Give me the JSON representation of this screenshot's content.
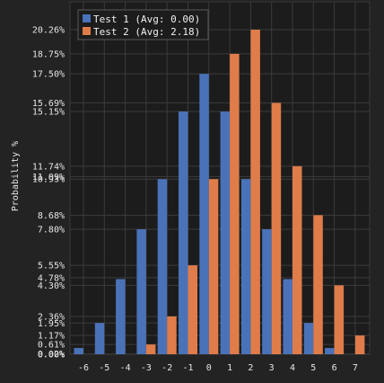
{
  "chart_data": {
    "type": "bar",
    "ylabel": "Probability %",
    "xlabel": "",
    "categories": [
      "-6",
      "-5",
      "-4",
      "-3",
      "-2",
      "-1",
      "0",
      "1",
      "2",
      "3",
      "4",
      "5",
      "6",
      "7"
    ],
    "ytick_labels": [
      "0.00%",
      "0.02%",
      "0.61%",
      "1.17%",
      "1.95%",
      "2.36%",
      "4.30%",
      "4.78%",
      "5.55%",
      "7.80%",
      "8.68%",
      "10.93%",
      "11.09%",
      "11.74%",
      "15.15%",
      "15.69%",
      "17.50%",
      "18.75%",
      "20.26%"
    ],
    "ytick_values": [
      0.0,
      0.02,
      0.61,
      1.17,
      1.95,
      2.36,
      4.3,
      4.78,
      5.55,
      7.8,
      8.68,
      10.93,
      11.09,
      11.74,
      15.15,
      15.69,
      17.5,
      18.75,
      20.26
    ],
    "ylim": [
      0,
      22
    ],
    "grid": true,
    "legend_position": "top-left",
    "series": [
      {
        "name": "Test 1 (Avg: 0.00)",
        "color": "#4a72b8",
        "values": [
          0.39,
          1.95,
          4.69,
          7.8,
          10.93,
          15.15,
          17.5,
          15.15,
          10.93,
          7.8,
          4.69,
          1.95,
          0.39,
          0
        ]
      },
      {
        "name": "Test 2 (Avg: 2.18)",
        "color": "#df7c4a",
        "values": [
          0,
          0,
          0,
          0.61,
          2.36,
          5.55,
          10.93,
          18.75,
          20.26,
          15.69,
          11.74,
          8.68,
          4.3,
          1.17
        ]
      }
    ]
  },
  "colors": {
    "background": "#232323",
    "plot_background": "#1c1c1c",
    "grid": "#3b3b3b",
    "text": "#e6e6e6"
  }
}
